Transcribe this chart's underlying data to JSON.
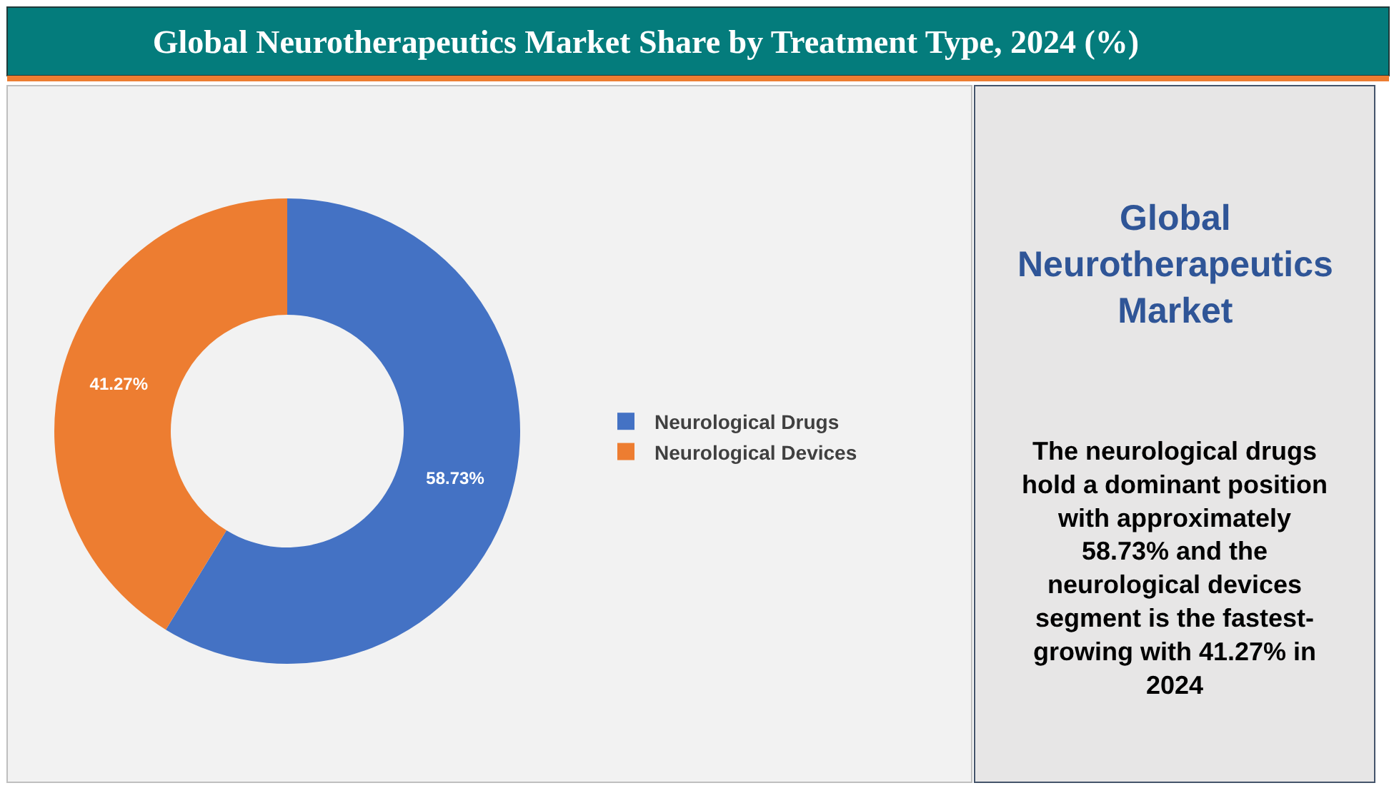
{
  "chart_data": {
    "type": "donut",
    "title": "Global Neurotherapeutics Market Share by Treatment Type, 2024 (%)",
    "categories": [
      "Neurological Drugs",
      "Neurological Devices"
    ],
    "values": [
      58.73,
      41.27
    ],
    "colors": [
      "#4472c4",
      "#ed7d31"
    ],
    "value_labels": [
      "58.73%",
      "41.27%"
    ],
    "legend": "right",
    "annotations": [
      "Global Neurotherapeutics Market",
      "The neurological drugs hold a dominant position with approximately 58.73% and the neurological devices segment is the fastest-growing with 41.27% in 2024"
    ]
  }
}
